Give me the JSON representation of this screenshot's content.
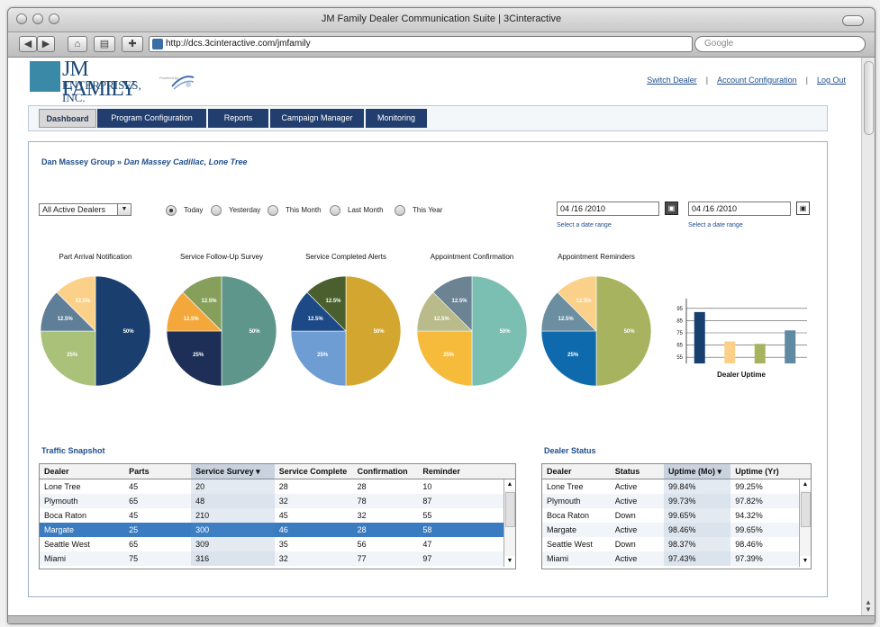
{
  "window": {
    "title": "JM Family Dealer Communication Suite | 3Cinteractive"
  },
  "browser": {
    "url": "http://dcs.3cinteractive.com/jmfamily",
    "search_placeholder": "Google"
  },
  "logo": {
    "line1": "JM FAMILY",
    "line2": "ENTERPRISES, INC.",
    "powered": "Powered by"
  },
  "top_links": [
    "Switch Dealer",
    "Account Configuration",
    "Log Out"
  ],
  "tabs": [
    "Dashboard",
    "Program Configuration",
    "Reports",
    "Campaign Manager",
    "Monitoring"
  ],
  "breadcrumb": {
    "group": "Dan Massey Group",
    "separator": "»",
    "dealer": "Dan Massey Cadillac, Lone Tree"
  },
  "filter": {
    "dealer_select": "All Active Dealers",
    "ranges": [
      "Today",
      "Yesterday",
      "This Month",
      "Last Month",
      "This Year"
    ],
    "selected_range": "Today"
  },
  "dates": {
    "start": "04 /16 /2010",
    "end": "04 /16 /2010",
    "start_hint": "Select a date range",
    "end_hint": "Select a date range"
  },
  "pies": [
    {
      "title": "Part Arrival Notification",
      "slices": [
        {
          "label": "50%",
          "value": 50,
          "color": "#1a3f6f"
        },
        {
          "label": "25%",
          "value": 25,
          "color": "#aac17a"
        },
        {
          "label": "12.5%",
          "value": 12.5,
          "color": "#5f7f98"
        },
        {
          "label": "12.5%",
          "value": 12.5,
          "color": "#fbd18a"
        }
      ]
    },
    {
      "title": "Service Follow-Up Survey",
      "slices": [
        {
          "label": "50%",
          "value": 50,
          "color": "#5f968b"
        },
        {
          "label": "25%",
          "value": 25,
          "color": "#1d2f56"
        },
        {
          "label": "12.5%",
          "value": 12.5,
          "color": "#f4a73b"
        },
        {
          "label": "12.5%",
          "value": 12.5,
          "color": "#86a05b"
        }
      ]
    },
    {
      "title": "Service Completed Alerts",
      "slices": [
        {
          "label": "50%",
          "value": 50,
          "color": "#d3a630"
        },
        {
          "label": "25%",
          "value": 25,
          "color": "#6e9dd3"
        },
        {
          "label": "12.5%",
          "value": 12.5,
          "color": "#1d4a87"
        },
        {
          "label": "12.5%",
          "value": 12.5,
          "color": "#4a5f2d"
        }
      ]
    },
    {
      "title": "Appointment Confirmation",
      "slices": [
        {
          "label": "50%",
          "value": 50,
          "color": "#7bbfb2"
        },
        {
          "label": "25%",
          "value": 25,
          "color": "#f7bb3c"
        },
        {
          "label": "12.5%",
          "value": 12.5,
          "color": "#b9bb8b"
        },
        {
          "label": "12.5%",
          "value": 12.5,
          "color": "#6b8393"
        }
      ]
    },
    {
      "title": "Appointment Reminders",
      "slices": [
        {
          "label": "50%",
          "value": 50,
          "color": "#a7b35f"
        },
        {
          "label": "25%",
          "value": 25,
          "color": "#0f6aad"
        },
        {
          "label": "12.5%",
          "value": 12.5,
          "color": "#6b8fa0"
        },
        {
          "label": "12.5%",
          "value": 12.5,
          "color": "#fbd18a"
        }
      ]
    }
  ],
  "chart_data": {
    "type": "bar",
    "title": "",
    "xlabel": "Dealer Uptime",
    "ylabel": "",
    "yticks": [
      "95",
      "85",
      "75",
      "65",
      "55"
    ],
    "ylim": [
      50,
      100
    ],
    "categories": [
      "",
      "",
      "",
      ""
    ],
    "values": [
      92,
      68,
      66,
      77
    ],
    "colors": [
      "#17406f",
      "#fbd18a",
      "#a7b35f",
      "#5f8aa2"
    ]
  },
  "traffic": {
    "title": "Traffic Snapshot",
    "columns": [
      "Dealer",
      "Parts",
      "Service Survey",
      "Service Complete",
      "Confirmation",
      "Reminder"
    ],
    "sorted_column": 2,
    "rows": [
      [
        "Lone Tree",
        "45",
        "20",
        "28",
        "28",
        "10"
      ],
      [
        "Plymouth",
        "65",
        "48",
        "32",
        "78",
        "87"
      ],
      [
        "Boca Raton",
        "45",
        "210",
        "45",
        "32",
        "55"
      ],
      [
        "Margate",
        "25",
        "300",
        "46",
        "28",
        "58"
      ],
      [
        "Seattle West",
        "65",
        "309",
        "35",
        "56",
        "47"
      ],
      [
        "Miami",
        "75",
        "316",
        "32",
        "77",
        "97"
      ]
    ],
    "selected_row": 3
  },
  "dealer_status": {
    "title": "Dealer Status",
    "columns": [
      "Dealer",
      "Status",
      "Uptime (Mo)",
      "Uptime (Yr)"
    ],
    "sorted_column": 2,
    "rows": [
      [
        "Lone Tree",
        "Active",
        "99.84%",
        "99.25%"
      ],
      [
        "Plymouth",
        "Active",
        "99.73%",
        "97.82%"
      ],
      [
        "Boca Raton",
        "Down",
        "99.65%",
        "94.32%"
      ],
      [
        "Margate",
        "Active",
        "98.46%",
        "99.65%"
      ],
      [
        "Seattle West",
        "Down",
        "98.37%",
        "98.46%"
      ],
      [
        "Miami",
        "Active",
        "97.43%",
        "97.39%"
      ]
    ]
  }
}
